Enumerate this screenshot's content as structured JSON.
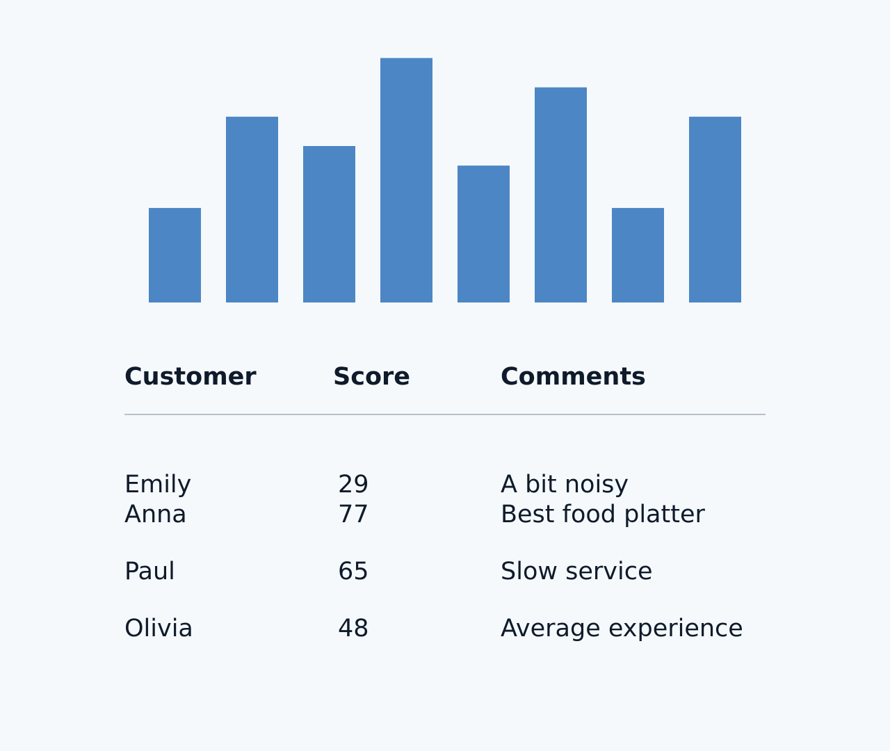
{
  "chart_data": {
    "type": "bar",
    "categories": [
      "",
      "",
      "",
      "",
      "",
      "",
      "",
      ""
    ],
    "values": [
      29,
      57,
      48,
      75,
      42,
      66,
      29,
      57
    ],
    "title": "",
    "xlabel": "",
    "ylabel": "",
    "ylim": [
      0,
      80
    ],
    "grid": false,
    "color": "#4c86c5"
  },
  "table": {
    "headers": {
      "customer": "Customer",
      "score": "Score",
      "comments": "Comments"
    },
    "rows": [
      {
        "customer": "Emily",
        "score": "29",
        "comments": "A bit noisy"
      },
      {
        "customer": "Anna",
        "score": "77",
        "comments": "Best food platter"
      },
      {
        "customer": "Paul",
        "score": "65",
        "comments": "Slow service"
      },
      {
        "customer": "Olivia",
        "score": "48",
        "comments": "Average experience"
      }
    ]
  },
  "colors": {
    "background": "#f5f9fc",
    "bar": "#4c86c5",
    "text": "#0f1a2a",
    "divider": "#b8c0c8"
  }
}
